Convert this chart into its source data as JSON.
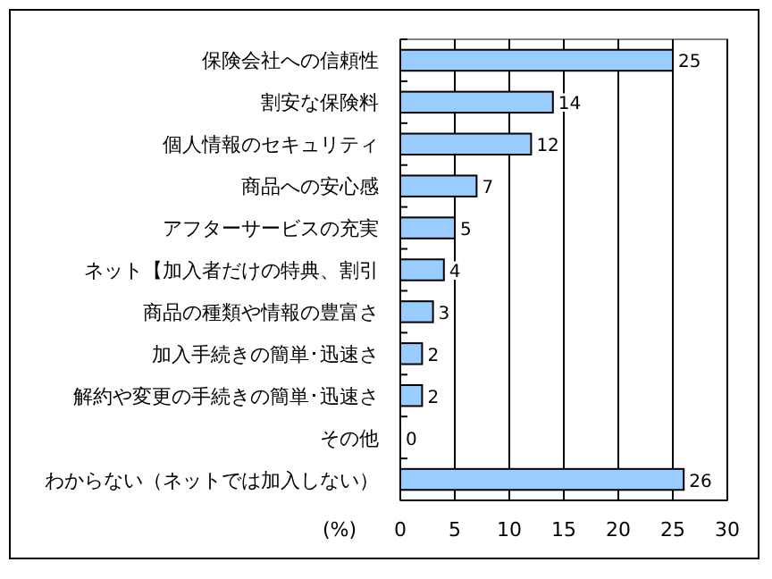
{
  "chart_data": {
    "type": "bar",
    "orientation": "horizontal",
    "xlabel": "(%)",
    "categories": [
      "保険会社への信頼性",
      "割安な保険料",
      "個人情報のセキュリティ",
      "商品への安心感",
      "アフターサービスの充実",
      "ネット【加入者だけの特典、割引",
      "商品の種類や情報の豊富さ",
      "加入手続きの簡単･迅速さ",
      "解約や変更の手続きの簡単･迅速さ",
      "その他",
      "わからない（ネットでは加入しない）"
    ],
    "values": [
      25,
      14,
      12,
      7,
      5,
      4,
      3,
      2,
      2,
      0,
      26
    ],
    "color": "#99ccff",
    "xlim": [
      0,
      30
    ],
    "xticks": [
      0,
      5,
      10,
      15,
      20,
      25,
      30
    ],
    "grid": "x",
    "data_labels": true
  }
}
